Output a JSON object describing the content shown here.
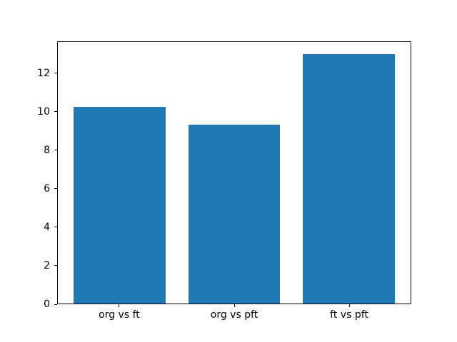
{
  "figure": {
    "background": "#ffffff"
  },
  "chart_data": {
    "type": "bar",
    "categories": [
      "org vs ft",
      "org vs pft",
      "ft vs pft"
    ],
    "values": [
      10.25,
      9.35,
      13.0
    ],
    "title": "",
    "xlabel": "",
    "ylabel": "",
    "ylim": [
      0,
      13.65
    ],
    "yticks": [
      0,
      2,
      4,
      6,
      8,
      10,
      12
    ],
    "bar_color": "#1f77b4",
    "axes_edge_color": "#000000",
    "tick_label_color": "#000000",
    "grid": false
  }
}
